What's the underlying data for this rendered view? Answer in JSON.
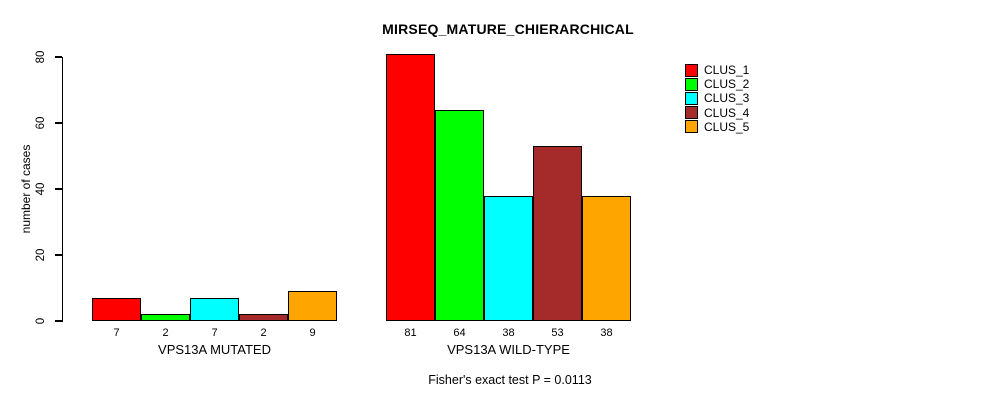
{
  "chart_data": {
    "type": "bar",
    "title": "MIRSEQ_MATURE_CHIERARCHICAL",
    "xlabel": "",
    "ylabel": "number of cases",
    "ylim": [
      0,
      80
    ],
    "yticks": [
      0,
      20,
      40,
      60,
      80
    ],
    "grid": false,
    "show_bar_value_labels": true,
    "legend_position": "top-right",
    "categories": [
      "VPS13A MUTATED",
      "VPS13A WILD-TYPE"
    ],
    "series": [
      {
        "name": "CLUS_1",
        "color": "#FF0000",
        "values": [
          7,
          81
        ]
      },
      {
        "name": "CLUS_2",
        "color": "#00FF00",
        "values": [
          2,
          64
        ]
      },
      {
        "name": "CLUS_3",
        "color": "#00FFFF",
        "values": [
          7,
          38
        ]
      },
      {
        "name": "CLUS_4",
        "color": "#A52A2A",
        "values": [
          2,
          53
        ]
      },
      {
        "name": "CLUS_5",
        "color": "#FFA500",
        "values": [
          9,
          38
        ]
      }
    ],
    "annotation": "Fisher's exact test P = 0.0113"
  },
  "colors": {
    "background": "#FFFFFF",
    "axis": "#000000",
    "text": "#000000"
  }
}
